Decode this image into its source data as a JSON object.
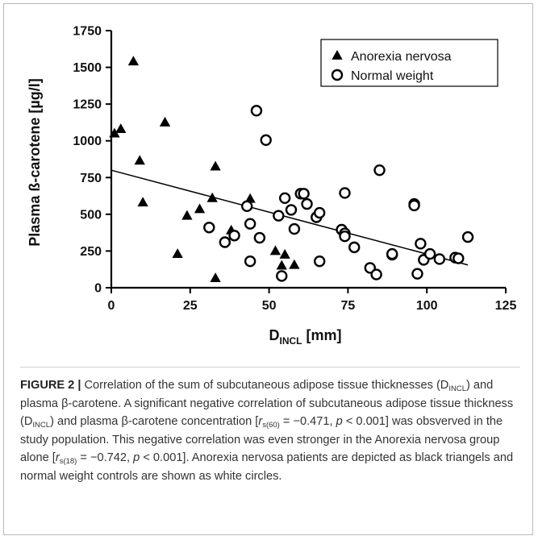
{
  "chart_data": {
    "type": "scatter",
    "xlabel": {
      "main": "D",
      "sub": "INCL",
      "unit": "[mm]"
    },
    "ylabel": "Plasma ß-carotene [µg/l]",
    "xlim": [
      0,
      125
    ],
    "ylim": [
      0,
      1750
    ],
    "xticks": [
      "0",
      "25",
      "50",
      "75",
      "100",
      "125"
    ],
    "yticks": [
      "0",
      "250",
      "500",
      "750",
      "1000",
      "1250",
      "1500",
      "1750"
    ],
    "legend_position": "top-right",
    "grid": false,
    "series": [
      {
        "name": "Anorexia nervosa",
        "marker": "triangle",
        "points": [
          [
            1,
            1050
          ],
          [
            3,
            1080
          ],
          [
            7,
            1540
          ],
          [
            9,
            865
          ],
          [
            10,
            580
          ],
          [
            17,
            1125
          ],
          [
            21,
            230
          ],
          [
            24,
            490
          ],
          [
            28,
            535
          ],
          [
            32,
            610
          ],
          [
            33,
            825
          ],
          [
            33,
            65
          ],
          [
            38,
            390
          ],
          [
            44,
            605
          ],
          [
            52,
            250
          ],
          [
            54,
            150
          ],
          [
            55,
            225
          ],
          [
            58,
            155
          ]
        ]
      },
      {
        "name": "Normal weight",
        "marker": "circle-open",
        "points": [
          [
            31,
            410
          ],
          [
            36,
            310
          ],
          [
            39,
            355
          ],
          [
            43,
            555
          ],
          [
            44,
            435
          ],
          [
            44,
            180
          ],
          [
            46,
            1205
          ],
          [
            47,
            340
          ],
          [
            49,
            1005
          ],
          [
            53,
            490
          ],
          [
            54,
            80
          ],
          [
            55,
            610
          ],
          [
            57,
            530
          ],
          [
            58,
            400
          ],
          [
            60,
            640
          ],
          [
            61,
            640
          ],
          [
            62,
            570
          ],
          [
            65,
            480
          ],
          [
            66,
            510
          ],
          [
            66,
            180
          ],
          [
            73,
            395
          ],
          [
            74,
            370
          ],
          [
            74,
            350
          ],
          [
            74,
            645
          ],
          [
            77,
            275
          ],
          [
            82,
            135
          ],
          [
            84,
            90
          ],
          [
            85,
            800
          ],
          [
            89,
            225
          ],
          [
            89,
            230
          ],
          [
            96,
            570
          ],
          [
            96,
            560
          ],
          [
            97,
            95
          ],
          [
            98,
            300
          ],
          [
            99,
            190
          ],
          [
            101,
            230
          ],
          [
            104,
            195
          ],
          [
            109,
            205
          ],
          [
            110,
            200
          ],
          [
            113,
            345
          ]
        ]
      }
    ],
    "trendline": {
      "x": [
        0,
        113
      ],
      "y": [
        800,
        155
      ]
    }
  },
  "caption": {
    "label": "FIGURE 2 |",
    "text": "Correlation of the sum of subcutaneous adipose tissue thicknesses (DINCL) and plasma β-carotene. A significant negative correlation of subcutaneous adipose tissue thickness (DINCL) and plasma β-carotene concentration [rs(60) = −0.471, p < 0.001] was obsverved in the study population. This negative correlation was even stronger in the Anorexia nervosa group alone [rs(18) = −0.742, p < 0.001]. Anorexia nervosa patients are depicted as black triangels and normal weight controls are shown as white circles.",
    "runs": [
      {
        "t": " Correlation of the sum of subcutaneous adipose tissue thicknesses (D"
      },
      {
        "t": "INCL",
        "sub": true
      },
      {
        "t": ") and plasma β-carotene. A significant negative correlation of subcutaneous adipose tissue thickness (D"
      },
      {
        "t": "INCL",
        "sub": true
      },
      {
        "t": ") and plasma β-carotene concentration ["
      },
      {
        "t": "r",
        "i": true
      },
      {
        "t": "s(60)",
        "sub": true
      },
      {
        "t": " = −0.471, "
      },
      {
        "t": "p",
        "i": true
      },
      {
        "t": " < 0.001] was obsverved in the study population. This negative correlation was even stronger in the Anorexia nervosa group alone ["
      },
      {
        "t": "r",
        "i": true
      },
      {
        "t": "s(18)",
        "sub": true
      },
      {
        "t": " = −0.742, "
      },
      {
        "t": "p",
        "i": true
      },
      {
        "t": " < 0.001]. Anorexia nervosa patients are depicted as black triangels and normal weight controls are shown as white circles."
      }
    ]
  }
}
